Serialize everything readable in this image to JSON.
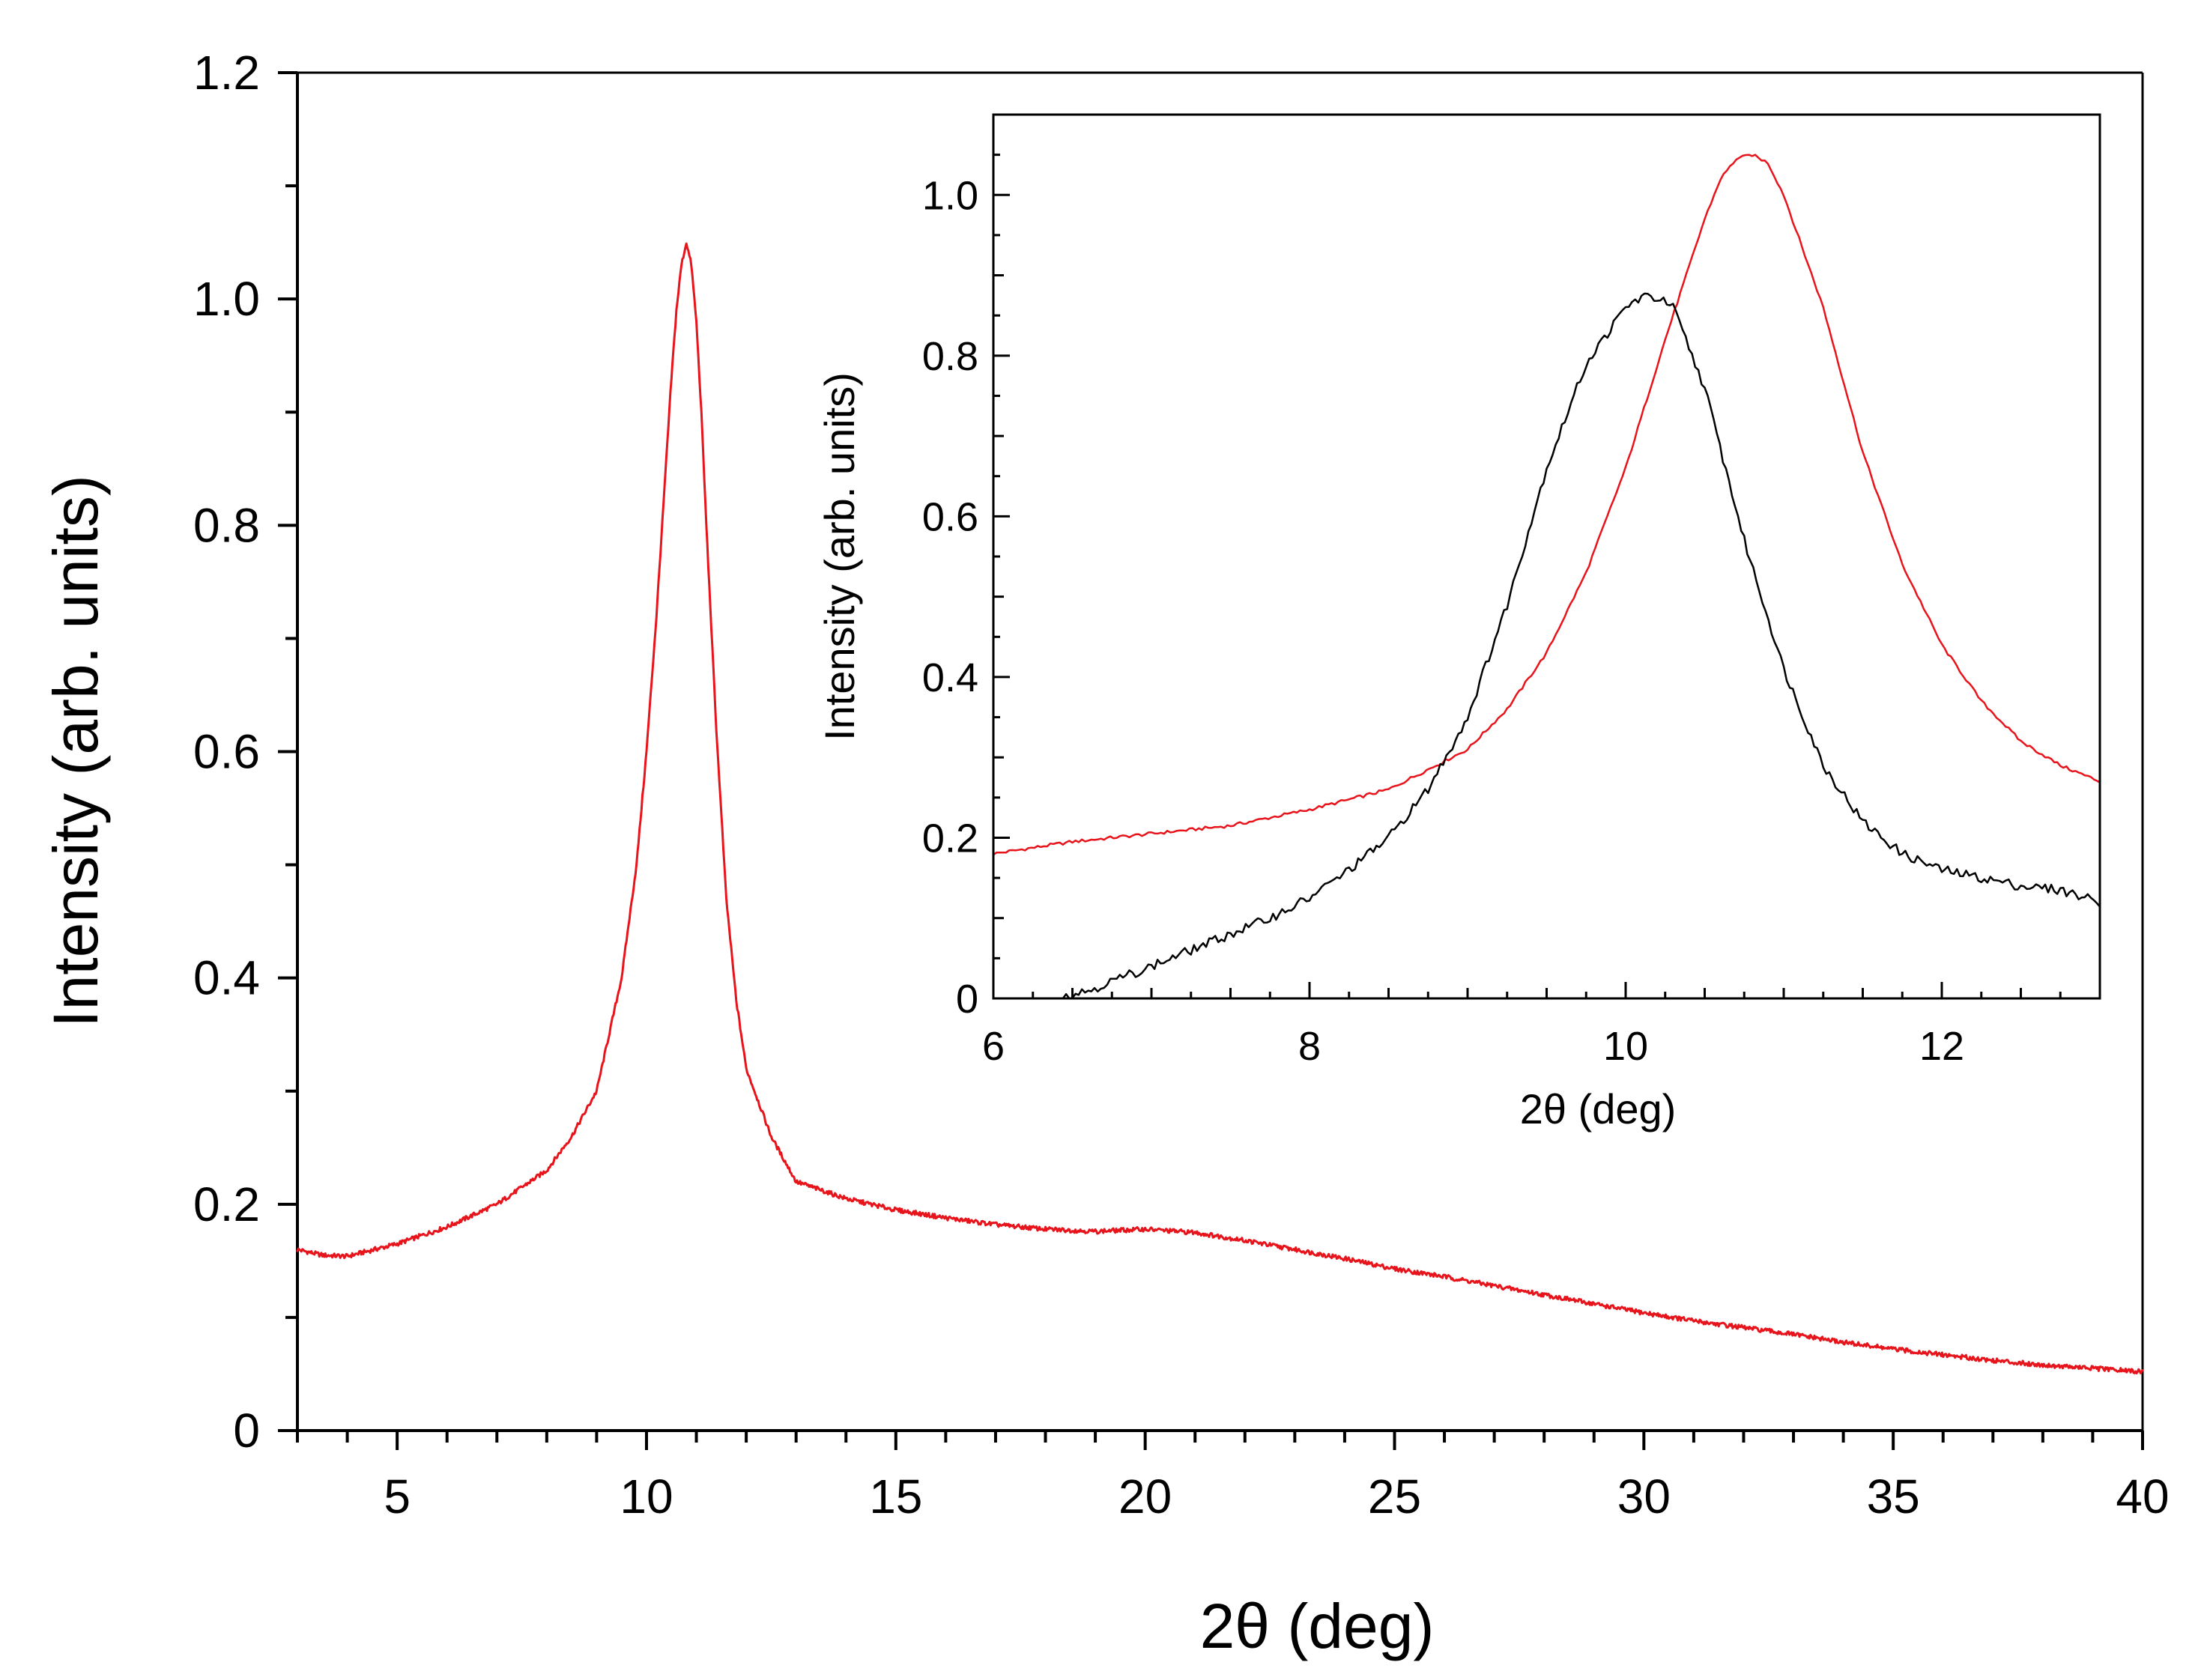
{
  "chart_data": [
    {
      "type": "line",
      "role": "main",
      "title": "",
      "xlabel": "2θ (deg)",
      "ylabel": "Intensity (arb. units)",
      "xlim": [
        3,
        40
      ],
      "ylim": [
        0,
        1.2
      ],
      "xticks": [
        5,
        10,
        15,
        20,
        25,
        30,
        35,
        40
      ],
      "xtick_labels": [
        "5",
        "10",
        "15",
        "20",
        "25",
        "30",
        "35",
        "40"
      ],
      "yticks": [
        0,
        0.2,
        0.4,
        0.6,
        0.8,
        1.0,
        1.2
      ],
      "ytick_labels": [
        "0",
        "0.2",
        "0.4",
        "0.6",
        "0.8",
        "1.0",
        "1.2"
      ],
      "grid": false,
      "series": [
        {
          "name": "red",
          "color": "#e8141c",
          "x": [
            3,
            3.5,
            4,
            5,
            6,
            7,
            8,
            8.5,
            9,
            9.5,
            9.8,
            10.0,
            10.2,
            10.4,
            10.5,
            10.6,
            10.7,
            10.8,
            10.9,
            11.0,
            11.1,
            11.2,
            11.4,
            11.6,
            11.8,
            12.0,
            12.5,
            13,
            14,
            15,
            16,
            17,
            18,
            19,
            20,
            21,
            22,
            23,
            24,
            25,
            26,
            27,
            28,
            29,
            30,
            31,
            32,
            33,
            34,
            35,
            36,
            37,
            38,
            39,
            40
          ],
          "y": [
            0.16,
            0.155,
            0.154,
            0.165,
            0.18,
            0.2,
            0.23,
            0.26,
            0.3,
            0.4,
            0.5,
            0.6,
            0.72,
            0.86,
            0.93,
            0.99,
            1.03,
            1.05,
            1.03,
            0.98,
            0.9,
            0.8,
            0.62,
            0.47,
            0.38,
            0.32,
            0.26,
            0.22,
            0.205,
            0.195,
            0.188,
            0.182,
            0.178,
            0.176,
            0.178,
            0.175,
            0.168,
            0.16,
            0.152,
            0.143,
            0.136,
            0.128,
            0.12,
            0.112,
            0.104,
            0.097,
            0.091,
            0.085,
            0.078,
            0.072,
            0.067,
            0.062,
            0.058,
            0.055,
            0.052
          ]
        }
      ]
    },
    {
      "type": "line",
      "role": "inset",
      "title": "",
      "xlabel": "2θ (deg)",
      "ylabel": "Intensity (arb. units)",
      "xlim": [
        6,
        13
      ],
      "ylim": [
        0,
        1.1
      ],
      "xticks": [
        6,
        8,
        10,
        12
      ],
      "xtick_labels": [
        "6",
        "8",
        "10",
        "12"
      ],
      "yticks": [
        0,
        0.2,
        0.4,
        0.6,
        0.8,
        1.0
      ],
      "ytick_labels": [
        "0",
        "0.2",
        "0.4",
        "0.6",
        "0.8",
        "1.0"
      ],
      "grid": false,
      "series": [
        {
          "name": "red",
          "color": "#e8141c",
          "x": [
            6.0,
            6.5,
            7.0,
            7.5,
            8.0,
            8.5,
            9.0,
            9.25,
            9.5,
            9.75,
            10.0,
            10.25,
            10.5,
            10.6,
            10.7,
            10.8,
            10.9,
            11.0,
            11.25,
            11.5,
            11.75,
            12.0,
            12.25,
            12.5,
            12.75,
            13.0
          ],
          "y": [
            0.18,
            0.195,
            0.205,
            0.215,
            0.235,
            0.26,
            0.31,
            0.36,
            0.43,
            0.53,
            0.66,
            0.82,
            0.97,
            1.02,
            1.045,
            1.05,
            1.04,
            1.0,
            0.86,
            0.68,
            0.54,
            0.44,
            0.37,
            0.32,
            0.29,
            0.27
          ]
        },
        {
          "name": "black",
          "color": "#000000",
          "x": [
            6.4,
            6.6,
            6.8,
            7.0,
            7.25,
            7.5,
            7.75,
            8.0,
            8.25,
            8.5,
            8.75,
            9.0,
            9.25,
            9.5,
            9.75,
            10.0,
            10.1,
            10.2,
            10.3,
            10.5,
            10.75,
            11.0,
            11.25,
            11.5,
            11.75,
            12.0,
            12.25,
            12.5,
            12.75,
            13.0
          ],
          "y": [
            0.0,
            0.01,
            0.025,
            0.04,
            0.06,
            0.08,
            0.1,
            0.125,
            0.16,
            0.2,
            0.26,
            0.35,
            0.49,
            0.66,
            0.79,
            0.86,
            0.873,
            0.872,
            0.86,
            0.76,
            0.57,
            0.41,
            0.29,
            0.22,
            0.18,
            0.16,
            0.15,
            0.14,
            0.135,
            0.12
          ]
        }
      ]
    }
  ]
}
